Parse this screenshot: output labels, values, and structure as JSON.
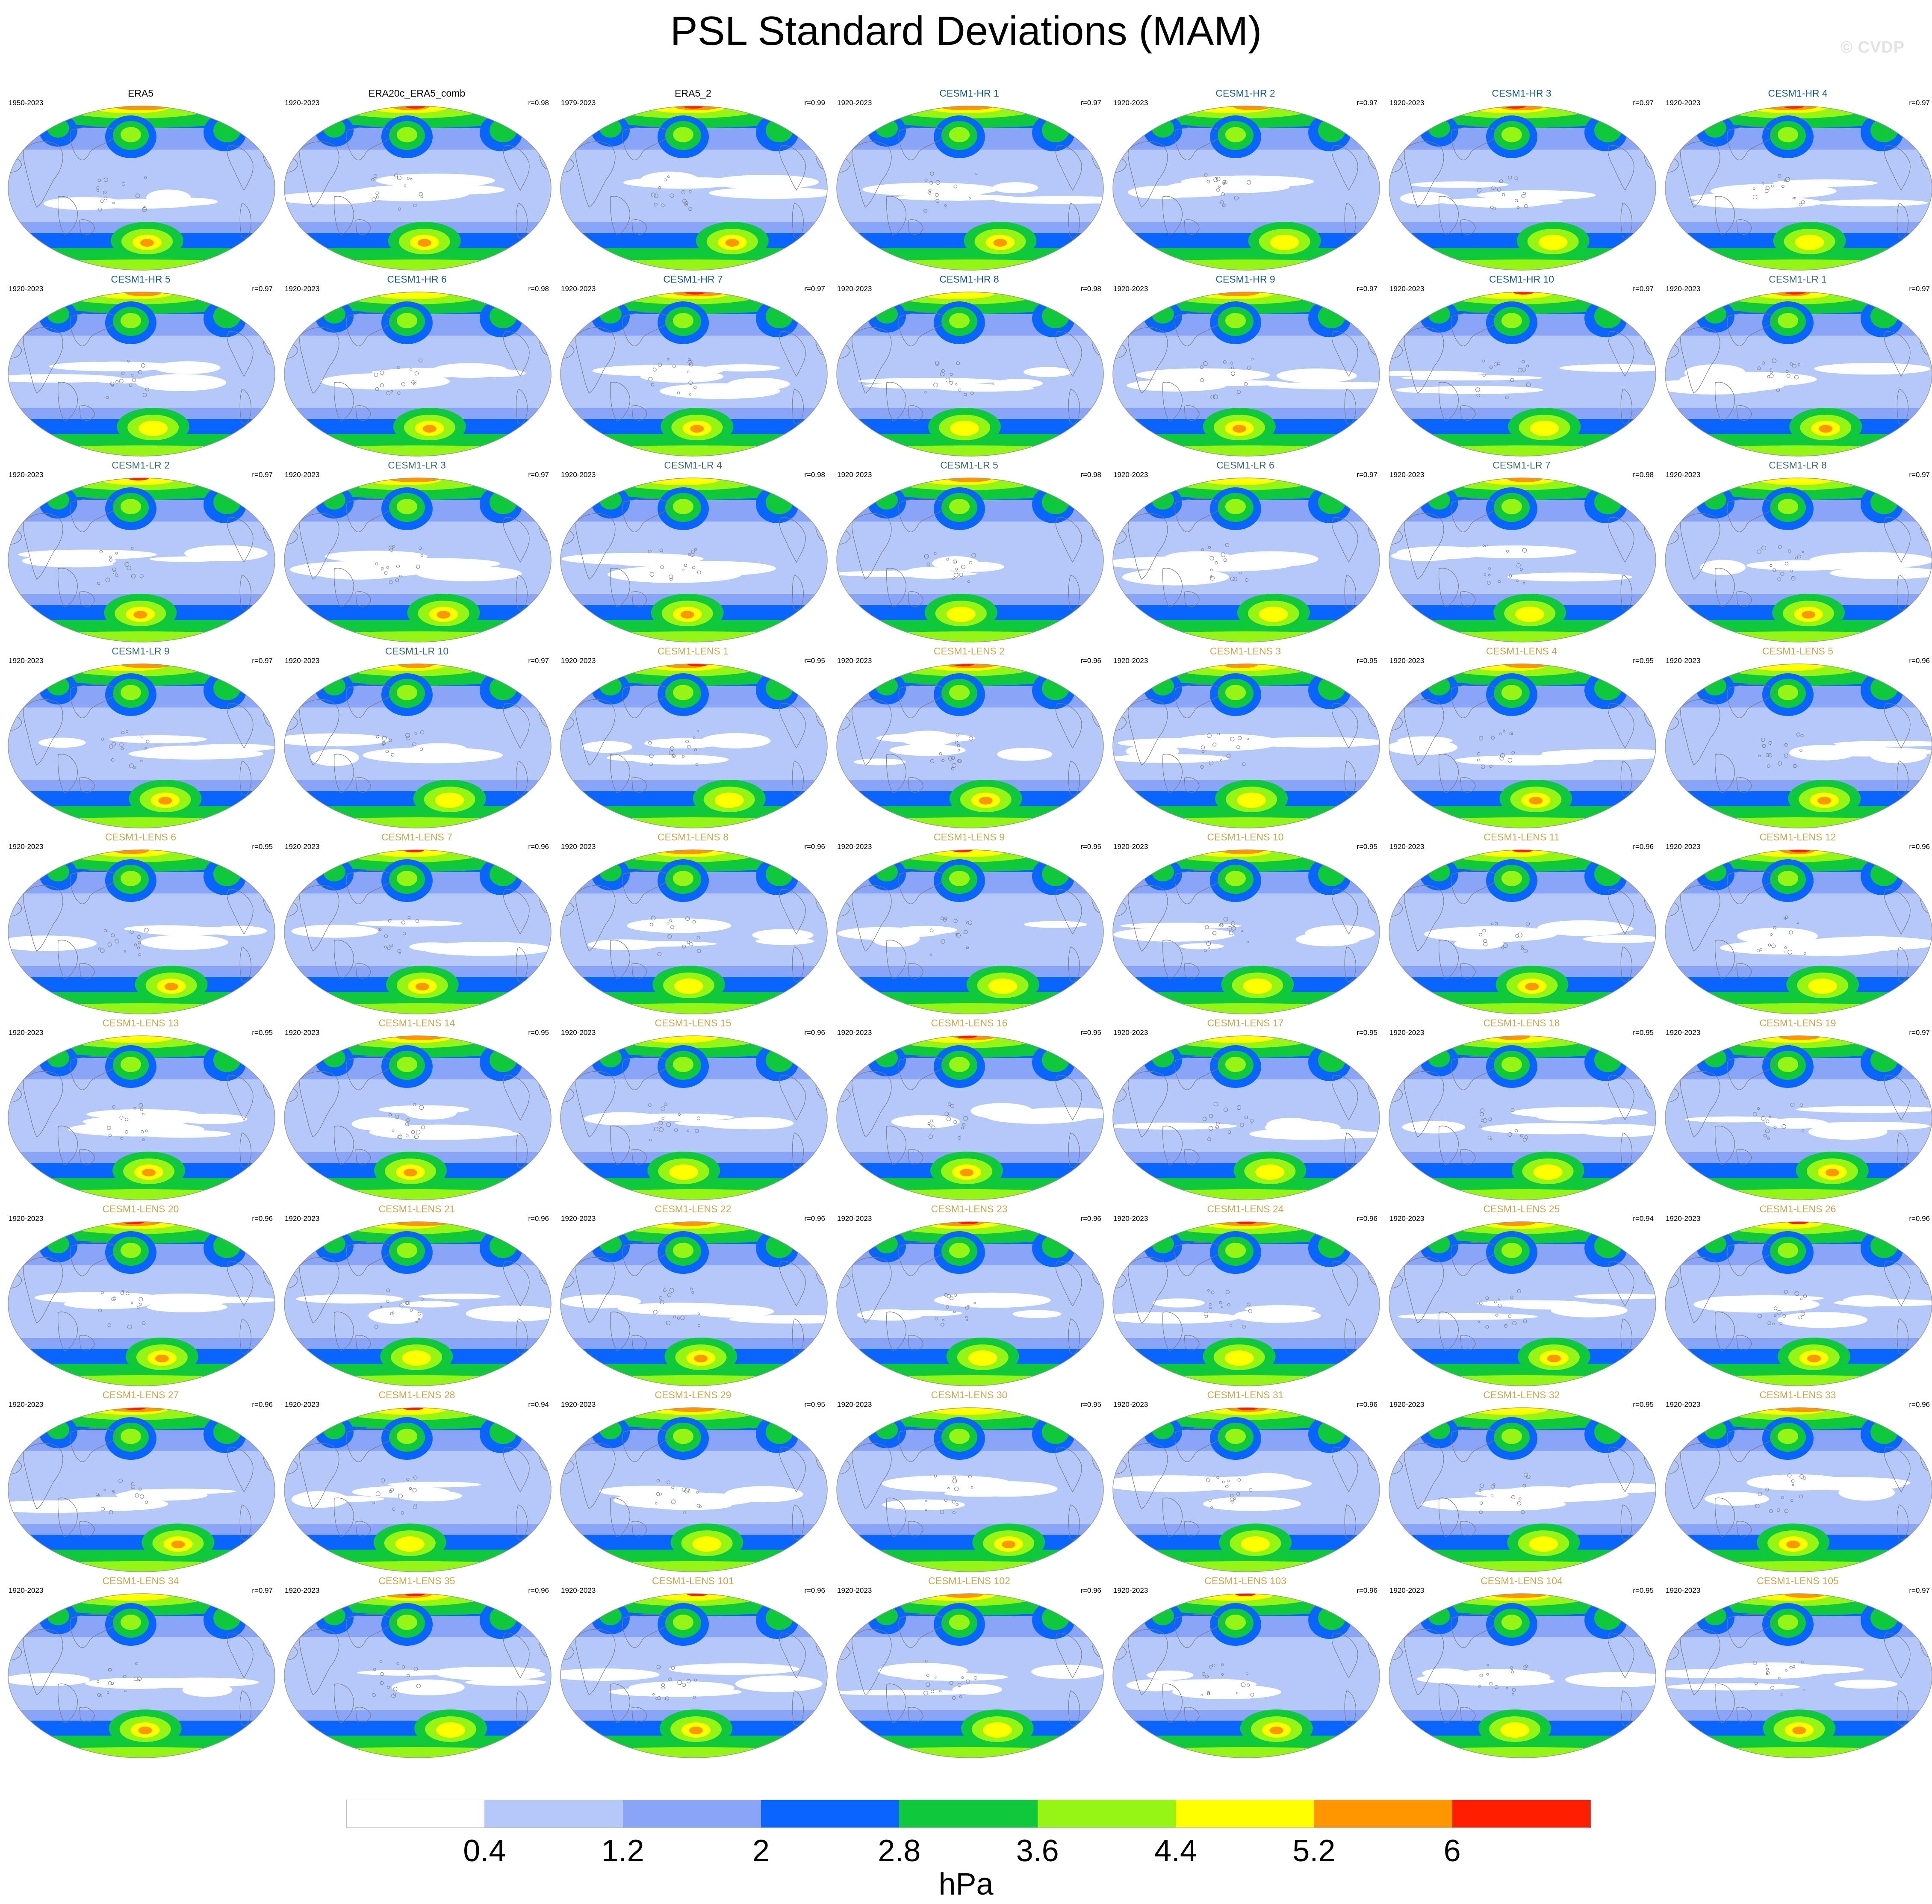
{
  "page": {
    "title": "PSL Standard Deviations (MAM)",
    "watermark": "© CVDP"
  },
  "chart_data": {
    "type": "heatmap",
    "layout": "small-multiples",
    "rows": 9,
    "columns": 7,
    "projection": "Robinson (Pacific-centered)",
    "title_colors": {
      "observations": "#000000",
      "CESM1-HR": "#1a5c8f",
      "CESM1-LR": "#3c6b6b",
      "CESM1-LENS": "#c8a652"
    },
    "panels": [
      {
        "name": "ERA5",
        "years": "1950-2023",
        "r": "",
        "group": "observations"
      },
      {
        "name": "ERA20c_ERA5_comb",
        "years": "1920-2023",
        "r": "r=0.98",
        "group": "observations"
      },
      {
        "name": "ERA5_2",
        "years": "1979-2023",
        "r": "r=0.99",
        "group": "observations"
      },
      {
        "name": "CESM1-HR 1",
        "years": "1920-2023",
        "r": "r=0.97",
        "group": "CESM1-HR"
      },
      {
        "name": "CESM1-HR 2",
        "years": "1920-2023",
        "r": "r=0.97",
        "group": "CESM1-HR"
      },
      {
        "name": "CESM1-HR 3",
        "years": "1920-2023",
        "r": "r=0.97",
        "group": "CESM1-HR"
      },
      {
        "name": "CESM1-HR 4",
        "years": "1920-2023",
        "r": "r=0.97",
        "group": "CESM1-HR"
      },
      {
        "name": "CESM1-HR 5",
        "years": "1920-2023",
        "r": "r=0.97",
        "group": "CESM1-HR"
      },
      {
        "name": "CESM1-HR 6",
        "years": "1920-2023",
        "r": "r=0.98",
        "group": "CESM1-HR"
      },
      {
        "name": "CESM1-HR 7",
        "years": "1920-2023",
        "r": "r=0.97",
        "group": "CESM1-HR"
      },
      {
        "name": "CESM1-HR 8",
        "years": "1920-2023",
        "r": "r=0.98",
        "group": "CESM1-HR"
      },
      {
        "name": "CESM1-HR 9",
        "years": "1920-2023",
        "r": "r=0.97",
        "group": "CESM1-HR"
      },
      {
        "name": "CESM1-HR 10",
        "years": "1920-2023",
        "r": "r=0.97",
        "group": "CESM1-HR"
      },
      {
        "name": "CESM1-LR 1",
        "years": "1920-2023",
        "r": "r=0.97",
        "group": "CESM1-LR"
      },
      {
        "name": "CESM1-LR 2",
        "years": "1920-2023",
        "r": "r=0.97",
        "group": "CESM1-LR"
      },
      {
        "name": "CESM1-LR 3",
        "years": "1920-2023",
        "r": "r=0.97",
        "group": "CESM1-LR"
      },
      {
        "name": "CESM1-LR 4",
        "years": "1920-2023",
        "r": "r=0.98",
        "group": "CESM1-LR"
      },
      {
        "name": "CESM1-LR 5",
        "years": "1920-2023",
        "r": "r=0.98",
        "group": "CESM1-LR"
      },
      {
        "name": "CESM1-LR 6",
        "years": "1920-2023",
        "r": "r=0.97",
        "group": "CESM1-LR"
      },
      {
        "name": "CESM1-LR 7",
        "years": "1920-2023",
        "r": "r=0.98",
        "group": "CESM1-LR"
      },
      {
        "name": "CESM1-LR 8",
        "years": "1920-2023",
        "r": "r=0.97",
        "group": "CESM1-LR"
      },
      {
        "name": "CESM1-LR 9",
        "years": "1920-2023",
        "r": "r=0.97",
        "group": "CESM1-LR"
      },
      {
        "name": "CESM1-LR 10",
        "years": "1920-2023",
        "r": "r=0.97",
        "group": "CESM1-LR"
      },
      {
        "name": "CESM1-LENS 1",
        "years": "1920-2023",
        "r": "r=0.95",
        "group": "CESM1-LENS"
      },
      {
        "name": "CESM1-LENS 2",
        "years": "1920-2023",
        "r": "r=0.96",
        "group": "CESM1-LENS"
      },
      {
        "name": "CESM1-LENS 3",
        "years": "1920-2023",
        "r": "r=0.95",
        "group": "CESM1-LENS"
      },
      {
        "name": "CESM1-LENS 4",
        "years": "1920-2023",
        "r": "r=0.95",
        "group": "CESM1-LENS"
      },
      {
        "name": "CESM1-LENS 5",
        "years": "1920-2023",
        "r": "r=0.96",
        "group": "CESM1-LENS"
      },
      {
        "name": "CESM1-LENS 6",
        "years": "1920-2023",
        "r": "r=0.95",
        "group": "CESM1-LENS"
      },
      {
        "name": "CESM1-LENS 7",
        "years": "1920-2023",
        "r": "r=0.96",
        "group": "CESM1-LENS"
      },
      {
        "name": "CESM1-LENS 8",
        "years": "1920-2023",
        "r": "r=0.96",
        "group": "CESM1-LENS"
      },
      {
        "name": "CESM1-LENS 9",
        "years": "1920-2023",
        "r": "r=0.95",
        "group": "CESM1-LENS"
      },
      {
        "name": "CESM1-LENS 10",
        "years": "1920-2023",
        "r": "r=0.95",
        "group": "CESM1-LENS"
      },
      {
        "name": "CESM1-LENS 11",
        "years": "1920-2023",
        "r": "r=0.96",
        "group": "CESM1-LENS"
      },
      {
        "name": "CESM1-LENS 12",
        "years": "1920-2023",
        "r": "r=0.96",
        "group": "CESM1-LENS"
      },
      {
        "name": "CESM1-LENS 13",
        "years": "1920-2023",
        "r": "r=0.95",
        "group": "CESM1-LENS"
      },
      {
        "name": "CESM1-LENS 14",
        "years": "1920-2023",
        "r": "r=0.95",
        "group": "CESM1-LENS"
      },
      {
        "name": "CESM1-LENS 15",
        "years": "1920-2023",
        "r": "r=0.96",
        "group": "CESM1-LENS"
      },
      {
        "name": "CESM1-LENS 16",
        "years": "1920-2023",
        "r": "r=0.95",
        "group": "CESM1-LENS"
      },
      {
        "name": "CESM1-LENS 17",
        "years": "1920-2023",
        "r": "r=0.95",
        "group": "CESM1-LENS"
      },
      {
        "name": "CESM1-LENS 18",
        "years": "1920-2023",
        "r": "r=0.95",
        "group": "CESM1-LENS"
      },
      {
        "name": "CESM1-LENS 19",
        "years": "1920-2023",
        "r": "r=0.97",
        "group": "CESM1-LENS"
      },
      {
        "name": "CESM1-LENS 20",
        "years": "1920-2023",
        "r": "r=0.96",
        "group": "CESM1-LENS"
      },
      {
        "name": "CESM1-LENS 21",
        "years": "1920-2023",
        "r": "r=0.96",
        "group": "CESM1-LENS"
      },
      {
        "name": "CESM1-LENS 22",
        "years": "1920-2023",
        "r": "r=0.96",
        "group": "CESM1-LENS"
      },
      {
        "name": "CESM1-LENS 23",
        "years": "1920-2023",
        "r": "r=0.96",
        "group": "CESM1-LENS"
      },
      {
        "name": "CESM1-LENS 24",
        "years": "1920-2023",
        "r": "r=0.96",
        "group": "CESM1-LENS"
      },
      {
        "name": "CESM1-LENS 25",
        "years": "1920-2023",
        "r": "r=0.94",
        "group": "CESM1-LENS"
      },
      {
        "name": "CESM1-LENS 26",
        "years": "1920-2023",
        "r": "r=0.96",
        "group": "CESM1-LENS"
      },
      {
        "name": "CESM1-LENS 27",
        "years": "1920-2023",
        "r": "r=0.96",
        "group": "CESM1-LENS"
      },
      {
        "name": "CESM1-LENS 28",
        "years": "1920-2023",
        "r": "r=0.94",
        "group": "CESM1-LENS"
      },
      {
        "name": "CESM1-LENS 29",
        "years": "1920-2023",
        "r": "r=0.95",
        "group": "CESM1-LENS"
      },
      {
        "name": "CESM1-LENS 30",
        "years": "1920-2023",
        "r": "r=0.95",
        "group": "CESM1-LENS"
      },
      {
        "name": "CESM1-LENS 31",
        "years": "1920-2023",
        "r": "r=0.96",
        "group": "CESM1-LENS"
      },
      {
        "name": "CESM1-LENS 32",
        "years": "1920-2023",
        "r": "r=0.95",
        "group": "CESM1-LENS"
      },
      {
        "name": "CESM1-LENS 33",
        "years": "1920-2023",
        "r": "r=0.96",
        "group": "CESM1-LENS"
      },
      {
        "name": "CESM1-LENS 34",
        "years": "1920-2023",
        "r": "r=0.97",
        "group": "CESM1-LENS"
      },
      {
        "name": "CESM1-LENS 35",
        "years": "1920-2023",
        "r": "r=0.96",
        "group": "CESM1-LENS"
      },
      {
        "name": "CESM1-LENS 101",
        "years": "1920-2023",
        "r": "r=0.96",
        "group": "CESM1-LENS"
      },
      {
        "name": "CESM1-LENS 102",
        "years": "1920-2023",
        "r": "r=0.96",
        "group": "CESM1-LENS"
      },
      {
        "name": "CESM1-LENS 103",
        "years": "1920-2023",
        "r": "r=0.96",
        "group": "CESM1-LENS"
      },
      {
        "name": "CESM1-LENS 104",
        "years": "1920-2023",
        "r": "r=0.95",
        "group": "CESM1-LENS"
      },
      {
        "name": "CESM1-LENS 105",
        "years": "1920-2023",
        "r": "r=0.97",
        "group": "CESM1-LENS"
      }
    ],
    "colorbar": {
      "levels": [
        0.4,
        1.2,
        2,
        2.8,
        3.6,
        4.4,
        5.2,
        6
      ],
      "tick_labels": [
        "0.4",
        "1.2",
        "2",
        "2.8",
        "3.6",
        "4.4",
        "5.2",
        "6"
      ],
      "colors": [
        "#ffffff",
        "#b4c8fa",
        "#8aa4f8",
        "#0a64ff",
        "#10c83c",
        "#96f514",
        "#ffff00",
        "#ff9600",
        "#ff1e00"
      ],
      "units": "hPa"
    }
  }
}
